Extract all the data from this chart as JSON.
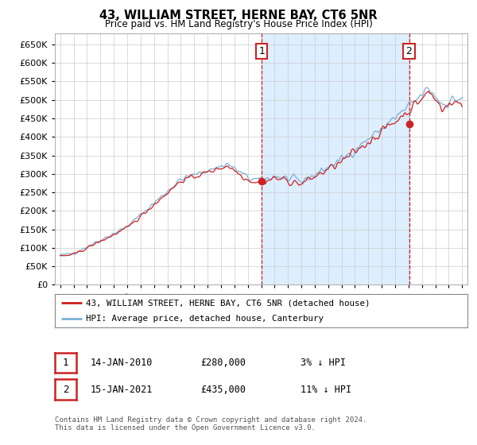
{
  "title": "43, WILLIAM STREET, HERNE BAY, CT6 5NR",
  "subtitle": "Price paid vs. HM Land Registry's House Price Index (HPI)",
  "legend_line1": "43, WILLIAM STREET, HERNE BAY, CT6 5NR (detached house)",
  "legend_line2": "HPI: Average price, detached house, Canterbury",
  "annotation1_date": "14-JAN-2010",
  "annotation1_price": "£280,000",
  "annotation1_hpi": "3% ↓ HPI",
  "annotation2_date": "15-JAN-2021",
  "annotation2_price": "£435,000",
  "annotation2_hpi": "11% ↓ HPI",
  "footer": "Contains HM Land Registry data © Crown copyright and database right 2024.\nThis data is licensed under the Open Government Licence v3.0.",
  "hpi_color": "#7bafd4",
  "price_color": "#cc2222",
  "dashed_color": "#cc2222",
  "highlight_color": "#ddeeff",
  "yticks": [
    0,
    50000,
    100000,
    150000,
    200000,
    250000,
    300000,
    350000,
    400000,
    450000,
    500000,
    550000,
    600000,
    650000
  ],
  "ylim": [
    0,
    680000
  ],
  "xlim_min": 1994.6,
  "xlim_max": 2025.4,
  "sale1_x": 2010.04,
  "sale1_y": 280000,
  "sale2_x": 2021.04,
  "sale2_y": 435000,
  "background_color": "#ffffff",
  "grid_color": "#cccccc"
}
